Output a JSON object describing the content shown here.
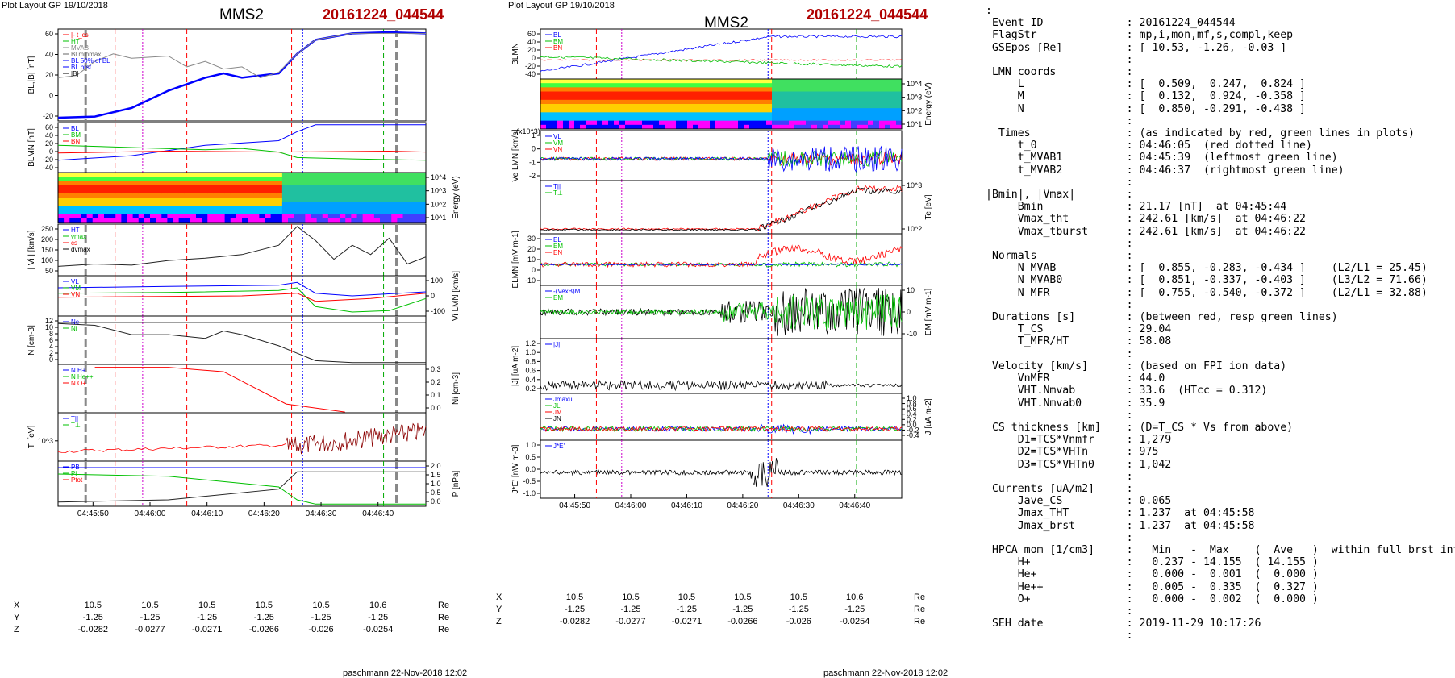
{
  "header": {
    "left_caption": "Plot Layout GP 19/10/2018",
    "mid_caption": "Plot Layout GP 19/10/2018",
    "spacecraft": "MMS2",
    "event": "20161224_044544"
  },
  "footer": {
    "left": "paschmann 22-Nov-2018 12:02",
    "mid": "paschmann 22-Nov-2018 12:02"
  },
  "time_ticks": [
    "04:45:50",
    "04:46:00",
    "04:46:10",
    "04:46:20",
    "04:46:30",
    "04:46:40"
  ],
  "positions": {
    "rows": [
      {
        "label": "X",
        "values": [
          "10.5",
          "10.5",
          "10.5",
          "10.5",
          "10.5",
          "10.6"
        ],
        "unit": "Re"
      },
      {
        "label": "Y",
        "values": [
          "-1.25",
          "-1.25",
          "-1.25",
          "-1.25",
          "-1.25",
          "-1.25"
        ],
        "unit": "Re"
      },
      {
        "label": "Z",
        "values": [
          "-0.0282",
          "-0.0277",
          "-0.0271",
          "-0.0266",
          "-0.026",
          "-0.0254"
        ],
        "unit": "Re"
      }
    ]
  },
  "colors": {
    "bl": "#0000ff",
    "bm": "#00c000",
    "bn": "#ff0000",
    "event": "#b00000",
    "red_line": "#ff0000",
    "green_line": "#00aa00",
    "blue_line": "#0000ff",
    "magenta_line": "#cc00cc"
  },
  "chart_data": [
    {
      "type": "line",
      "panel": "left-1",
      "ylabel": "BL,|B| [nT]",
      "ylim": [
        -20,
        65
      ],
      "yticks": [
        "60",
        "40",
        "20",
        "0",
        "-20"
      ],
      "legend": [
        "|-  t_cs",
        "HT",
        "MVAB",
        "Bl minmax",
        "BL 50% of BL",
        "BL brst",
        "|B|"
      ],
      "series": [
        {
          "name": "BL",
          "x": [
            0,
            0.1,
            0.2,
            0.3,
            0.4,
            0.45,
            0.5,
            0.6,
            0.65,
            0.7,
            0.8,
            0.9,
            1
          ],
          "values": [
            -17,
            -16,
            -8,
            8,
            20,
            24,
            20,
            24,
            42,
            55,
            61,
            62,
            61
          ]
        },
        {
          "name": "|B|",
          "x": [
            0,
            0.05,
            0.1,
            0.15,
            0.2,
            0.3,
            0.35,
            0.4,
            0.45,
            0.5,
            0.55,
            0.6,
            0.65,
            0.7,
            0.8,
            1
          ],
          "values": [
            20,
            22,
            35,
            42,
            38,
            40,
            30,
            35,
            28,
            30,
            20,
            25,
            42,
            55,
            61,
            61
          ]
        }
      ]
    },
    {
      "type": "line",
      "panel": "left-2",
      "ylabel": "BLMN [nT]",
      "ylim": [
        -45,
        65
      ],
      "yticks": [
        "60",
        "40",
        "20",
        "0",
        "-20",
        "-40"
      ],
      "legend": [
        "BL",
        "BM",
        "BN"
      ],
      "series": [
        {
          "name": "BL",
          "x": [
            0,
            0.2,
            0.4,
            0.5,
            0.6,
            0.65,
            0.7,
            1
          ],
          "values": [
            -18,
            -8,
            15,
            20,
            25,
            45,
            60,
            60
          ]
        },
        {
          "name": "BM",
          "x": [
            0,
            0.2,
            0.4,
            0.5,
            0.6,
            0.65,
            0.8,
            1
          ],
          "values": [
            15,
            10,
            5,
            8,
            0,
            -12,
            -15,
            -18
          ]
        },
        {
          "name": "BN",
          "x": [
            0,
            0.3,
            0.6,
            0.9,
            1
          ],
          "values": [
            -2,
            2,
            0,
            2,
            0
          ]
        }
      ]
    },
    {
      "type": "heatmap",
      "panel": "left-3",
      "ylabel": "Energy (eV)",
      "yticks": [
        "10^4",
        "10^3",
        "10^2",
        "10^1"
      ]
    },
    {
      "type": "line",
      "panel": "left-4",
      "ylabel": "| Vi | [km/s]",
      "ylim": [
        30,
        250
      ],
      "yticks": [
        "250",
        "200",
        "150",
        "100",
        "50"
      ],
      "legend": [
        "HT",
        "vmax",
        "cs",
        "dvmax"
      ],
      "series": [
        {
          "name": "Vi",
          "x": [
            0,
            0.1,
            0.2,
            0.3,
            0.4,
            0.5,
            0.6,
            0.65,
            0.7,
            0.75,
            0.8,
            0.85,
            0.9,
            0.95,
            1
          ],
          "values": [
            70,
            80,
            75,
            95,
            105,
            120,
            160,
            240,
            180,
            100,
            160,
            120,
            190,
            80,
            110
          ]
        }
      ]
    },
    {
      "type": "line",
      "panel": "left-5",
      "ylabel": "Vi LMN [km/s]",
      "ylim": [
        -150,
        150
      ],
      "yticks": [
        "100",
        "0",
        "-100"
      ],
      "legend": [
        "VL",
        "VM",
        "VN"
      ],
      "series": [
        {
          "name": "VL",
          "x": [
            0,
            0.3,
            0.6,
            0.65,
            0.7,
            0.8,
            1
          ],
          "values": [
            60,
            70,
            80,
            100,
            20,
            0,
            30
          ]
        },
        {
          "name": "VM",
          "x": [
            0,
            0.3,
            0.6,
            0.65,
            0.7,
            0.8,
            0.9,
            1
          ],
          "values": [
            20,
            25,
            40,
            60,
            -80,
            -120,
            -110,
            -20
          ]
        },
        {
          "name": "VN",
          "x": [
            0,
            0.5,
            0.65,
            0.7,
            0.85,
            1
          ],
          "values": [
            -10,
            0,
            20,
            -40,
            -20,
            20
          ]
        }
      ]
    },
    {
      "type": "line",
      "panel": "left-6",
      "ylabel": "N [cm-3]",
      "ylim": [
        0,
        13
      ],
      "yticks": [
        "12",
        "10",
        "8",
        "6",
        "4",
        "2",
        "0"
      ],
      "legend": [
        "Ne",
        "Ni"
      ],
      "series": [
        {
          "name": "Ni",
          "x": [
            0,
            0.1,
            0.2,
            0.3,
            0.4,
            0.45,
            0.5,
            0.6,
            0.65,
            0.7,
            0.8,
            1
          ],
          "values": [
            11,
            10.5,
            8,
            8,
            7,
            9,
            8,
            5,
            3,
            1,
            0.5,
            0.5
          ]
        }
      ]
    },
    {
      "type": "line",
      "panel": "left-7",
      "ylabel": "Ni [cm-3]",
      "ylim": [
        0,
        0.33
      ],
      "yticks": [
        "0.3",
        "0.2",
        "0.1",
        "0.0"
      ],
      "legend": [
        "N H+",
        "N He++",
        "N O+"
      ],
      "series": [
        {
          "name": "N He++",
          "x": [
            0.1,
            0.3,
            0.45,
            0.62,
            0.78
          ],
          "values": [
            0.31,
            0.31,
            0.28,
            0.06,
            0.005
          ]
        }
      ]
    },
    {
      "type": "line",
      "panel": "left-8",
      "ylabel": "Ti [eV]",
      "yticks": [
        "10^3"
      ],
      "legend": [
        "T||",
        "T⊥"
      ]
    },
    {
      "type": "line",
      "panel": "left-9",
      "ylabel": "P [nPa]",
      "ylim": [
        0,
        2.1
      ],
      "yticks": [
        "2.0",
        "1.5",
        "1.0",
        "0.5",
        "0.0"
      ],
      "legend": [
        "PB",
        "Pi",
        "Ptot"
      ],
      "series": [
        {
          "name": "PB",
          "x": [
            0,
            0.3,
            0.6,
            0.65,
            0.7,
            1
          ],
          "values": [
            0.2,
            0.3,
            0.8,
            1.6,
            1.6,
            1.6
          ]
        },
        {
          "name": "Pi",
          "x": [
            0,
            0.3,
            0.6,
            0.65,
            0.7,
            1
          ],
          "values": [
            1.5,
            1.4,
            0.9,
            0.3,
            0.1,
            0.1
          ]
        },
        {
          "name": "Ptot",
          "x": [
            0,
            0.3,
            0.6,
            0.7,
            1
          ],
          "values": [
            1.8,
            1.8,
            1.8,
            1.8,
            1.8
          ]
        }
      ]
    },
    {
      "type": "line",
      "panel": "mid-1",
      "ylabel": "BLMN",
      "ylim": [
        -45,
        65
      ],
      "yticks": [
        "60",
        "40",
        "20",
        "0",
        "-20",
        "-40"
      ],
      "legend": [
        "BL",
        "BM",
        "BN"
      ]
    },
    {
      "type": "heatmap",
      "panel": "mid-2",
      "ylabel": "Energy (eV)",
      "yticks": [
        "10^4",
        "10^3",
        "10^2",
        "10^1"
      ]
    },
    {
      "type": "line",
      "panel": "mid-3",
      "ylabel": "Ve LMN [km/s]",
      "yticks": [
        "1",
        "0",
        "-1",
        "-2"
      ],
      "legend": [
        "VL",
        "VM",
        "VN"
      ],
      "annotation": "(x10^3)"
    },
    {
      "type": "line",
      "panel": "mid-4",
      "ylabel": "Te [eV]",
      "yticks": [
        "10^3",
        "10^2"
      ],
      "legend": [
        "T||",
        "T⊥"
      ]
    },
    {
      "type": "line",
      "panel": "mid-5",
      "ylabel": "ELMN [mV m-1]",
      "yticks": [
        "30",
        "20",
        "10",
        "0",
        "-10"
      ],
      "legend": [
        "EL",
        "EM",
        "EN"
      ]
    },
    {
      "type": "line",
      "panel": "mid-6",
      "ylabel": "EM [mV m-1]",
      "yticks": [
        "10",
        "0",
        "-10"
      ],
      "legend": [
        "-(VexB)M",
        "EM"
      ]
    },
    {
      "type": "line",
      "panel": "mid-7",
      "ylabel": "|J| [uA m-2]",
      "yticks": [
        "1.2",
        "1.0",
        "0.8",
        "0.6",
        "0.4",
        "0.2"
      ],
      "legend": [
        "|J|"
      ]
    },
    {
      "type": "line",
      "panel": "mid-8",
      "ylabel": "J [uA m-2]",
      "yticks": [
        "1.0",
        "0.8",
        "0.6",
        "0.4",
        "0.2",
        "0.0",
        "-0.2",
        "-0.4"
      ],
      "legend": [
        "Jmaxu",
        "JL",
        "JM",
        "JN"
      ]
    },
    {
      "type": "line",
      "panel": "mid-9",
      "ylabel": "J*E' [nW m-3]",
      "yticks": [
        "1.0",
        "0.5",
        "0.0",
        "-0.5",
        "-1.0"
      ],
      "legend": [
        "J*E'"
      ]
    }
  ],
  "info": {
    "lines": [
      ":",
      " Event ID             : 20161224_044544",
      " FlagStr              : mp,i,mon,mf,s,compl,keep",
      " GSEpos [Re]          : [ 10.53, -1.26, -0.03 ]",
      "                      :",
      " LMN coords           :",
      "     L                : [  0.509,  0.247,  0.824 ]",
      "     M                : [  0.132,  0.924, -0.358 ]",
      "     N                : [  0.850, -0.291, -0.438 ]",
      "                      :",
      "  Times               : (as indicated by red, green lines in plots)",
      "     t_0              : 04:46:05  (red dotted line)",
      "     t_MVAB1          : 04:45:39  (leftmost green line)",
      "     t_MVAB2          : 04:46:37  (rightmost green line)",
      "                      :",
      "|Bmin|, |Vmax|        :",
      "     Bmin             : 21.17 [nT]  at 04:45:44",
      "     Vmax_tht         : 242.61 [km/s]  at 04:46:22",
      "     Vmax_tburst      : 242.61 [km/s]  at 04:46:22",
      "                      :",
      " Normals              :",
      "     N MVAB           : [  0.855, -0.283, -0.434 ]    (L2/L1 = 25.45)",
      "     N MVAB0          : [  0.851, -0.337, -0.403 ]    (L3/L2 = 71.66)",
      "     N MFR            : [  0.755, -0.540, -0.372 ]    (L2/L1 = 32.88)",
      "                      :",
      " Durations [s]        : (between red, resp green lines)",
      "     T_CS             : 29.04",
      "     T_MFR/HT         : 58.08",
      "                      :",
      " Velocity [km/s]      : (based on FPI ion data)",
      "     VnMFR            : 44.0",
      "     VHT.Nmvab        : 33.6  (HTcc = 0.312)",
      "     VHT.Nmvab0       : 35.9",
      "                      :",
      " CS thickness [km]    : (D=T_CS * Vs from above)",
      "     D1=TCS*Vnmfr     : 1,279",
      "     D2=TCS*VHTn      : 975",
      "     D3=TCS*VHTn0     : 1,042",
      "                      :",
      " Currents [uA/m2]     :",
      "     Jave_CS          : 0.065",
      "     Jmax_THT         : 1.237  at 04:45:58",
      "     Jmax_brst        : 1.237  at 04:45:58",
      "                      :",
      " HPCA mom [1/cm3]     :   Min   -  Max    (  Ave   )  within full brst int",
      "     H+               :   0.237 - 14.155  ( 14.155 )",
      "     He+              :   0.000 -  0.001  (  0.000 )",
      "     He++             :   0.005 -  0.335  (  0.327 )",
      "     O+               :   0.000 -  0.002  (  0.000 )",
      "                      :",
      " SEH date             : 2019-11-29 10:17:26",
      "                      :"
    ]
  }
}
